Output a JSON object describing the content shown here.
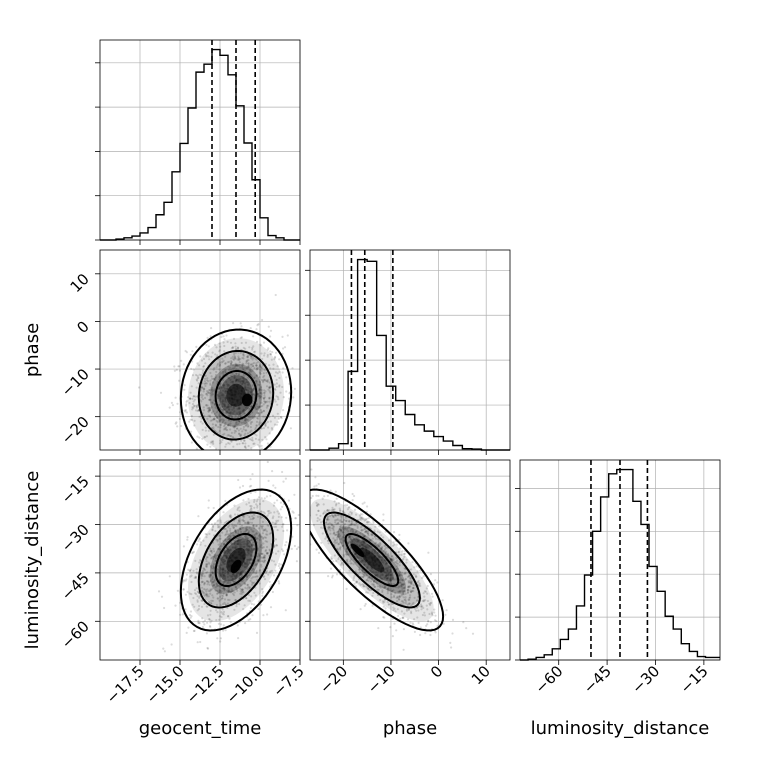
{
  "chart_data": {
    "type": "corner",
    "parameters": [
      "geocent_time",
      "phase",
      "luminosity_distance"
    ],
    "ranges": {
      "geocent_time": [
        -20,
        -7.5
      ],
      "phase": [
        -27,
        15
      ],
      "luminosity_distance": [
        -72,
        -10
      ]
    },
    "ticks": {
      "geocent_time": {
        "values": [
          -17.5,
          -15,
          -12.5,
          -10,
          -7.5
        ],
        "labels": [
          "−17.5",
          "−15.0",
          "−12.5",
          "−10.0",
          "−7.5"
        ]
      },
      "phase": {
        "values": [
          -20,
          -10,
          0,
          10
        ],
        "labels": [
          "−20",
          "−10",
          "0",
          "10"
        ]
      },
      "luminosity_distance": {
        "values": [
          -60,
          -45,
          -30,
          -15
        ],
        "labels": [
          "−60",
          "−45",
          "−30",
          "−15"
        ]
      }
    },
    "histograms": {
      "geocent_time": {
        "edges": [
          -20,
          -19.5,
          -19,
          -18.5,
          -18,
          -17.5,
          -17,
          -16.5,
          -16,
          -15.5,
          -15,
          -14.5,
          -14,
          -13.5,
          -13,
          -12.5,
          -12,
          -11.5,
          -11,
          -10.5,
          -10,
          -9.5,
          -9,
          -8.5,
          -8,
          -7.5
        ],
        "counts": [
          0,
          0,
          2,
          5,
          9,
          16,
          28,
          57,
          85,
          154,
          218,
          298,
          379,
          397,
          430,
          417,
          373,
          303,
          219,
          136,
          50,
          10,
          5,
          0,
          0
        ],
        "quantiles": [
          -13,
          -11.5,
          -10.3
        ]
      },
      "phase": {
        "edges": [
          -27,
          -25,
          -23,
          -21,
          -19,
          -17,
          -15,
          -13,
          -11,
          -9,
          -7,
          -5,
          -3,
          -1,
          1,
          3,
          5,
          7,
          9,
          11,
          13,
          15
        ],
        "counts": [
          0,
          0,
          4,
          14,
          175,
          424,
          420,
          255,
          142,
          110,
          79,
          56,
          42,
          30,
          20,
          10,
          3,
          2,
          0,
          0,
          0
        ],
        "quantiles": [
          -18.3,
          -15.5,
          -9.6
        ]
      },
      "luminosity_distance": {
        "edges": [
          -72,
          -69.5,
          -67,
          -64.5,
          -62,
          -59.5,
          -57,
          -54.5,
          -52,
          -49.5,
          -47,
          -44.5,
          -42,
          -39.5,
          -37,
          -34.5,
          -32,
          -29.5,
          -27,
          -24.5,
          -22,
          -19.5,
          -17,
          -14.5,
          -12,
          -10
        ],
        "counts": [
          0,
          1,
          3,
          6,
          13,
          24,
          36,
          63,
          99,
          150,
          190,
          217,
          222,
          222,
          185,
          158,
          109,
          80,
          51,
          36,
          19,
          10,
          4,
          3,
          3
        ],
        "quantiles": [
          -50,
          -41,
          -32.5
        ]
      }
    },
    "joint": {
      "geocent_time_vs_phase": {
        "x_mean": -11.5,
        "x_sd": 1.5,
        "y_mean": -15.5,
        "y_sd": 6.0,
        "correlation": 0.05,
        "peak": [
          -10.8,
          -16.5
        ]
      },
      "geocent_time_vs_luminosity_distance": {
        "x_mean": -11.5,
        "x_sd": 1.5,
        "y_mean": -41,
        "y_sd": 9.5,
        "correlation": 0.45,
        "peak": [
          -11.5,
          -43
        ]
      },
      "phase_vs_luminosity_distance": {
        "x_mean": -14,
        "x_sd": 6.5,
        "y_mean": -41,
        "y_sd": 9.5,
        "correlation": -0.8,
        "peak": [
          -17,
          -38
        ]
      }
    },
    "grid": true
  }
}
